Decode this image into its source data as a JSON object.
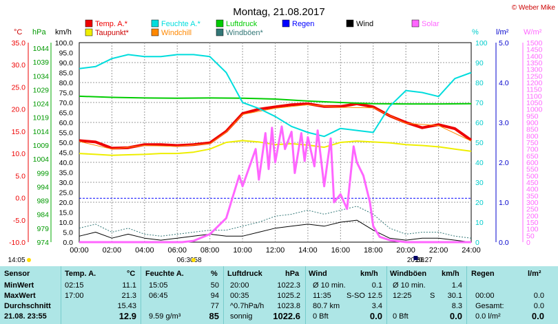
{
  "title": "Montag, 21.08.2017",
  "copyright": "© Weber Mike",
  "legend": [
    {
      "label": "Temp. A.*",
      "color": "#ee0000"
    },
    {
      "label": "Feuchte A.*",
      "color": "#00dddd"
    },
    {
      "label": "Luftdruck",
      "color": "#00cc00"
    },
    {
      "label": "Regen",
      "color": "#0000ff"
    },
    {
      "label": "Wind",
      "color": "#000000"
    },
    {
      "label": "Solar",
      "color": "#ff66ff"
    },
    {
      "label": "Taupunkt*",
      "color": "#eeee00"
    },
    {
      "label": "Windchill",
      "color": "#ff8800"
    },
    {
      "label": "Windböen*",
      "color": "#337777"
    }
  ],
  "axis_units": {
    "temp": "°C",
    "press": "hPa",
    "wind": "km/h",
    "hum": "%",
    "rain": "l/m²",
    "solar": "W/m²"
  },
  "chart_data": {
    "type": "line",
    "x_ticks": [
      "00:00",
      "02:00",
      "04:00",
      "06:00",
      "08:00",
      "10:00",
      "12:00",
      "14:00",
      "16:00",
      "18:00",
      "20:00",
      "22:00",
      "24:00"
    ],
    "temp_ticks": [
      "35.0",
      "30.0",
      "25.0",
      "20.0",
      "15.0",
      "10.0",
      "5.0",
      "0.0",
      "-5.0",
      "-10.0"
    ],
    "press_ticks": [
      "1044",
      "1039",
      "1034",
      "1029",
      "1024",
      "1019",
      "1014",
      "1009",
      "1004",
      "999",
      "994",
      "989",
      "984",
      "979",
      "974"
    ],
    "wind_ticks": [
      "100.0",
      "95.0",
      "90.0",
      "85.0",
      "80.0",
      "75.0",
      "70.0",
      "65.0",
      "60.0",
      "55.0",
      "50.0",
      "45.0",
      "40.0",
      "35.0",
      "30.0",
      "25.0",
      "20.0",
      "15.0",
      "10.0",
      "5.0",
      "0.0"
    ],
    "hum_ticks": [
      "100",
      "90",
      "80",
      "70",
      "60",
      "50",
      "40",
      "30",
      "20",
      "10",
      "0"
    ],
    "rain_ticks": [
      "5.0",
      "4.0",
      "3.0",
      "2.0",
      "1.0",
      "0.0"
    ],
    "solar_ticks": [
      "1500",
      "1450",
      "1400",
      "1350",
      "1300",
      "1250",
      "1200",
      "1150",
      "1100",
      "1050",
      "1000",
      "950",
      "900",
      "850",
      "800",
      "750",
      "700",
      "650",
      "600",
      "550",
      "500",
      "450",
      "400",
      "350",
      "300",
      "250",
      "200",
      "150",
      "100",
      "50",
      "0"
    ],
    "series": [
      {
        "name": "Temp. A.*",
        "color": "#ee0000",
        "width": 4,
        "axis": "temp",
        "x": [
          0,
          1,
          2,
          3,
          4,
          5,
          6,
          7,
          8,
          9,
          10,
          11,
          12,
          13,
          14,
          15,
          16,
          17,
          18,
          19,
          20,
          21,
          22,
          23,
          24
        ],
        "y": [
          12.9,
          12.6,
          11.2,
          11.3,
          12.0,
          12.0,
          11.8,
          12.0,
          12.4,
          15.0,
          19.0,
          20.0,
          20.5,
          21.0,
          21.2,
          20.6,
          20.6,
          21.2,
          20.5,
          18.5,
          17.0,
          15.8,
          16.5,
          15.6,
          13.0
        ]
      },
      {
        "name": "Windchill",
        "color": "#ff8800",
        "width": 1,
        "axis": "temp",
        "x": [
          0,
          2,
          4,
          6,
          8,
          9,
          10,
          12,
          14,
          16,
          18,
          20,
          22,
          24
        ],
        "y": [
          12.7,
          11.0,
          11.8,
          11.6,
          12.2,
          14.8,
          18.8,
          20.2,
          21.0,
          20.4,
          20.3,
          16.8,
          16.3,
          12.8
        ]
      },
      {
        "name": "Taupunkt*",
        "color": "#eeee00",
        "width": 2,
        "axis": "temp",
        "x": [
          0,
          1,
          2,
          3,
          4,
          5,
          6,
          7,
          8,
          9,
          10,
          11,
          12,
          13,
          14,
          15,
          16,
          17,
          18,
          19,
          20,
          21,
          22,
          23,
          24
        ],
        "y": [
          10.0,
          9.8,
          9.6,
          9.7,
          9.8,
          10.0,
          10.0,
          10.3,
          11.0,
          12.5,
          12.9,
          12.6,
          12.0,
          12.2,
          11.9,
          11.4,
          12.5,
          12.8,
          12.6,
          12.4,
          12.0,
          11.8,
          11.5,
          11.0,
          10.5
        ]
      },
      {
        "name": "Luftdruck",
        "color": "#00cc00",
        "width": 2,
        "axis": "press",
        "x": [
          0,
          2,
          4,
          6,
          8,
          10,
          12,
          14,
          16,
          18,
          20,
          22,
          24
        ],
        "y": [
          1025.2,
          1024.8,
          1024.6,
          1024.5,
          1024.6,
          1024.5,
          1024.2,
          1023.5,
          1023.0,
          1022.6,
          1022.5,
          1022.5,
          1022.6
        ]
      },
      {
        "name": "Feuchte A.*",
        "color": "#00dddd",
        "width": 2,
        "axis": "hum",
        "x": [
          0,
          1,
          2,
          3,
          4,
          5,
          6,
          7,
          8,
          9,
          10,
          11,
          12,
          13,
          14,
          15,
          16,
          17,
          18,
          19,
          20,
          21,
          22,
          23,
          24
        ],
        "y": [
          87,
          88,
          92,
          94,
          93,
          93,
          94,
          94,
          93,
          85,
          70,
          67,
          63,
          58,
          55,
          53,
          57,
          56,
          55,
          68,
          76,
          75,
          73,
          82,
          85
        ]
      },
      {
        "name": "Wind",
        "color": "#000000",
        "width": 1,
        "axis": "wind",
        "x": [
          0,
          1,
          2,
          3,
          4,
          5,
          6,
          7,
          8,
          9,
          10,
          11,
          12,
          13,
          14,
          15,
          16,
          17,
          18,
          19,
          20,
          21,
          22,
          23,
          24
        ],
        "y": [
          3,
          5,
          2,
          4,
          2,
          1,
          2,
          3,
          4,
          3,
          3,
          5,
          7,
          8,
          9,
          8,
          10,
          11,
          6,
          2,
          1,
          2,
          2,
          1,
          0
        ]
      },
      {
        "name": "Windböen*",
        "color": "#337777",
        "width": 1,
        "axis": "wind",
        "dash": "2,2",
        "x": [
          0,
          1,
          2,
          3,
          4,
          5,
          6,
          7,
          8,
          9,
          10,
          11,
          12,
          13,
          14,
          15,
          16,
          17,
          18,
          19,
          20,
          21,
          22,
          23,
          24
        ],
        "y": [
          7,
          9,
          5,
          7,
          4,
          3,
          4,
          5,
          6,
          6,
          8,
          10,
          13,
          14,
          16,
          14,
          16,
          18,
          14,
          7,
          4,
          5,
          5,
          3,
          2
        ]
      },
      {
        "name": "Solar",
        "color": "#ff66ff",
        "width": 3,
        "axis": "solar",
        "x": [
          0,
          6.3,
          7,
          8,
          9,
          9.8,
          10,
          10.8,
          11,
          11.4,
          11.6,
          11.8,
          12,
          12.4,
          12.6,
          13,
          13.2,
          13.6,
          13.8,
          14,
          14.4,
          14.6,
          15,
          15.4,
          15.6,
          16,
          16.4,
          16.8,
          17,
          17.4,
          17.8,
          18,
          18.4,
          19,
          20,
          24
        ],
        "y": [
          0,
          0,
          10,
          60,
          180,
          500,
          420,
          700,
          470,
          820,
          550,
          860,
          600,
          870,
          700,
          830,
          520,
          820,
          610,
          790,
          570,
          840,
          420,
          780,
          300,
          360,
          250,
          720,
          600,
          500,
          300,
          120,
          40,
          15,
          0,
          0
        ]
      }
    ],
    "regen_dash_level": 1.1,
    "marks": [
      {
        "text": "14:05",
        "x": 0
      },
      {
        "text": "06:30",
        "x": 6.5
      },
      {
        "text": ":58",
        "x": 7.2
      },
      {
        "text": "20:36",
        "x": 20.6
      },
      {
        "text": "20:27",
        "x": 21.1
      }
    ]
  },
  "table": {
    "header": [
      "Sensor",
      "Temp. A.",
      "°C",
      "Feuchte A.",
      "%",
      "Luftdruck",
      "hPa",
      "Wind",
      "km/h",
      "Windböen",
      "km/h",
      "Regen",
      "l/m²"
    ],
    "rows": [
      {
        "label": "MinWert",
        "t_time": "02:15",
        "t_val": "11.1",
        "h_time": "15:05",
        "h_val": "50",
        "p_time": "20:00",
        "p_val": "1022.3",
        "w_txt": "Ø 10 min.",
        "w_dir": "",
        "w_val": "0.1",
        "b_txt": "Ø 10 min.",
        "b_dir": "",
        "b_val": "1.4",
        "r_txt": "",
        "r_val": ""
      },
      {
        "label": "MaxWert",
        "t_time": "17:00",
        "t_val": "21.3",
        "h_time": "06:45",
        "h_val": "94",
        "p_time": "00:35",
        "p_val": "1025.2",
        "w_txt": "11:35",
        "w_dir": "S-SO",
        "w_val": "12.5",
        "b_txt": "12:25",
        "b_dir": "S",
        "b_val": "30.1",
        "r_txt": "00:00",
        "r_val": "0.0"
      },
      {
        "label": "Durchschnitt",
        "t_time": "",
        "t_val": "15.43",
        "h_time": "",
        "h_val": "77",
        "p_time": "^0.7hPa/h",
        "p_val": "1023.8",
        "w_txt": "80.7 km",
        "w_dir": "",
        "w_val": "3.4",
        "b_txt": "",
        "b_dir": "",
        "b_val": "8.3",
        "r_txt": "Gesamt:",
        "r_val": "0.0"
      },
      {
        "label": "21.08. 23:55",
        "t_time": "",
        "t_val": "12.9",
        "h_time": "9.59 g/m³",
        "h_val": "85",
        "p_time": "sonnig",
        "p_val": "1022.6",
        "w_txt": "0 Bft",
        "w_dir": "",
        "w_val": "0.0",
        "b_txt": "0 Bft",
        "b_dir": "",
        "b_val": "0.0",
        "r_txt": "0.0 l/m²",
        "r_val": "0.0"
      }
    ]
  }
}
